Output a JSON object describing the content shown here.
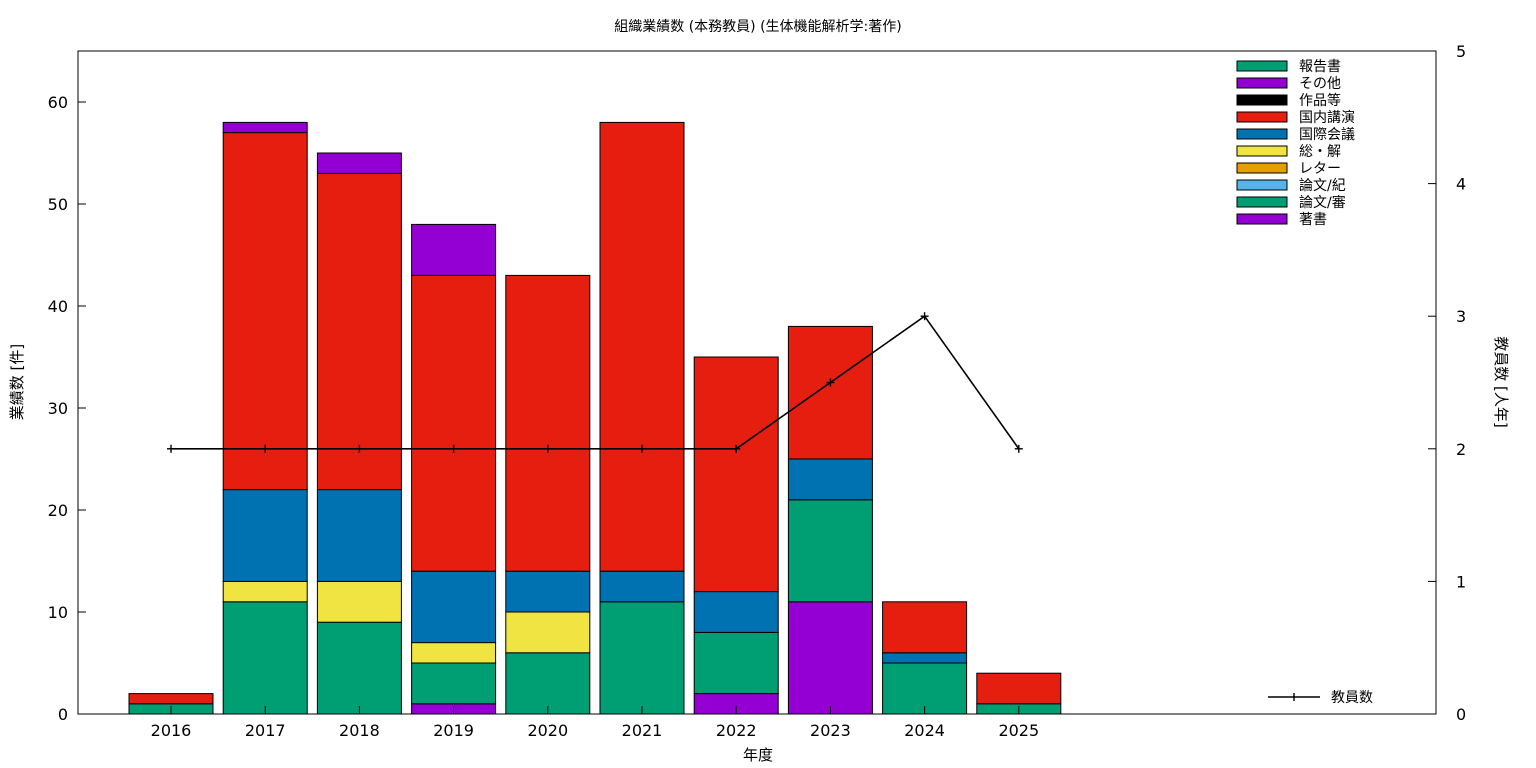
{
  "chart_data": {
    "type": "bar",
    "stacked": true,
    "title": "組織業績数 (本務教員) (生体機能解析学:著作)",
    "xlabel": "年度",
    "ylabel": "業績数 [件]",
    "y2label": "教員数 [人年]",
    "categories": [
      "2016",
      "2017",
      "2018",
      "2019",
      "2020",
      "2021",
      "2022",
      "2023",
      "2024",
      "2025"
    ],
    "ylim": [
      0,
      65
    ],
    "yticks": [
      0,
      10,
      20,
      30,
      40,
      50,
      60
    ],
    "y2lim": [
      0,
      5
    ],
    "y2ticks": [
      0,
      1,
      2,
      3,
      4,
      5
    ],
    "grid": false,
    "legend_position": "top-right",
    "series": [
      {
        "name": "著書",
        "color": "#9400d3",
        "values": [
          0,
          0,
          0,
          1,
          0,
          0,
          2,
          11,
          0,
          0
        ]
      },
      {
        "name": "論文/審",
        "color": "#009e73",
        "values": [
          1,
          11,
          9,
          4,
          6,
          11,
          6,
          10,
          5,
          1
        ]
      },
      {
        "name": "論文/紀",
        "color": "#56b4e9",
        "values": [
          0,
          0,
          0,
          0,
          0,
          0,
          0,
          0,
          0,
          0
        ]
      },
      {
        "name": "レター",
        "color": "#e69f00",
        "values": [
          0,
          0,
          0,
          0,
          0,
          0,
          0,
          0,
          0,
          0
        ]
      },
      {
        "name": "総・解",
        "color": "#f0e442",
        "values": [
          0,
          2,
          4,
          2,
          4,
          0,
          0,
          0,
          0,
          0
        ]
      },
      {
        "name": "国際会議",
        "color": "#0072b2",
        "values": [
          0,
          9,
          9,
          7,
          4,
          3,
          4,
          4,
          1,
          0
        ]
      },
      {
        "name": "国内講演",
        "color": "#e51e10",
        "values": [
          1,
          35,
          31,
          29,
          29,
          44,
          23,
          13,
          5,
          3
        ]
      },
      {
        "name": "作品等",
        "color": "#000000",
        "values": [
          0,
          0,
          0,
          0,
          0,
          0,
          0,
          0,
          0,
          0
        ]
      },
      {
        "name": "その他",
        "color": "#9400d3",
        "values": [
          0,
          1,
          2,
          5,
          0,
          0,
          0,
          0,
          0,
          0
        ]
      },
      {
        "name": "報告書",
        "color": "#009e73",
        "values": [
          0,
          0,
          0,
          0,
          0,
          0,
          0,
          0,
          0,
          0
        ]
      }
    ],
    "line_series": {
      "name": "教員数",
      "axis": "y2",
      "color": "#000000",
      "values": [
        2,
        2,
        2,
        2,
        2,
        2,
        2,
        2.5,
        3,
        2
      ]
    }
  }
}
